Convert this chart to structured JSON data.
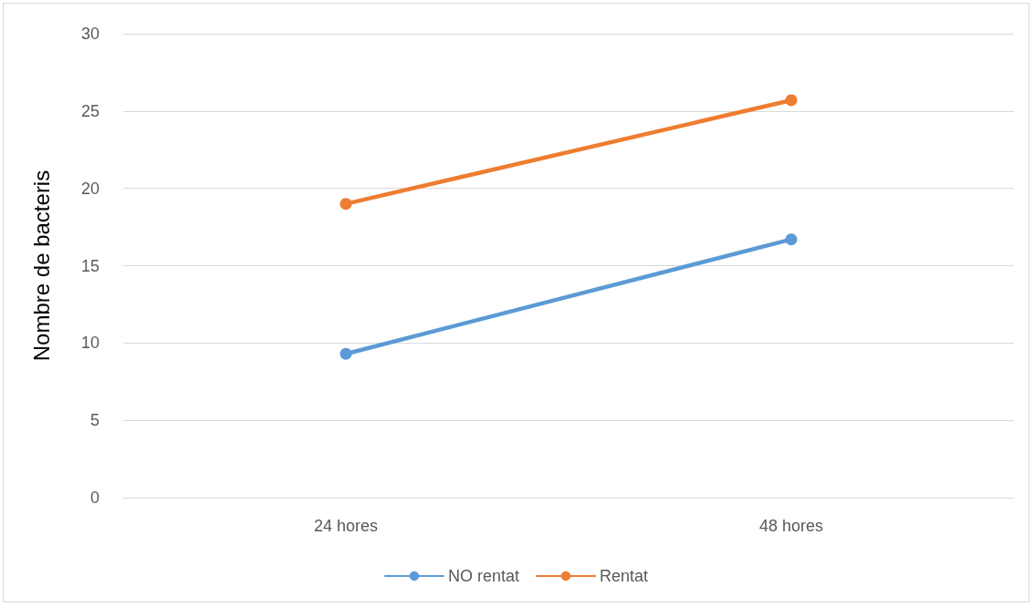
{
  "chart_data": {
    "type": "line",
    "ylabel": "Nombre de bacteris",
    "categories": [
      "24 hores",
      "48 hores"
    ],
    "series": [
      {
        "name": "NO rentat",
        "color": "#5b9bd5",
        "values": [
          9.3,
          16.7
        ]
      },
      {
        "name": "Rentat",
        "color": "#ed7d31",
        "values": [
          19,
          25.7
        ]
      }
    ],
    "ylim": [
      0,
      30
    ],
    "yticks": [
      0,
      5,
      10,
      15,
      20,
      25,
      30
    ],
    "grid": "y",
    "legend": "bottom",
    "marker": "circle",
    "line_style": "solid"
  }
}
